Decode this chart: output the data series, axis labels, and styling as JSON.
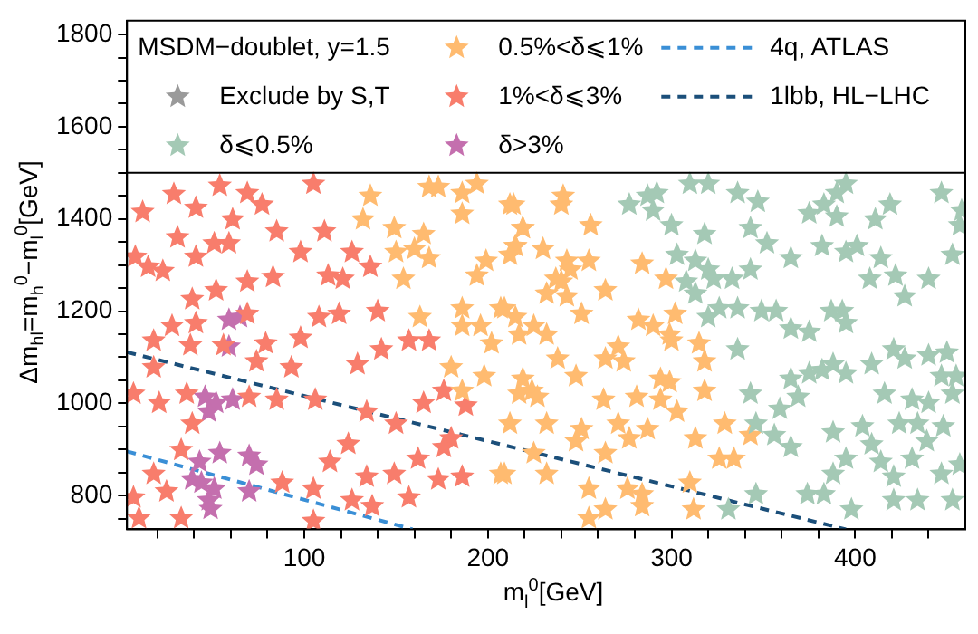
{
  "chart_data": {
    "type": "scatter",
    "legend_title": "MSDM−doublet, y=1.5",
    "xlabel": "m$_{l}$$^{0}$[GeV]",
    "ylabel": "Δm$_{hl}$=m$_{h}$$^{0}$−m$_{l}$$^{0}$[GeV]",
    "xlim": [
      3.5,
      460
    ],
    "ylim": [
      727,
      1830
    ],
    "xticks": [
      {
        "value": 20,
        "label": null
      },
      {
        "value": 40,
        "label": null
      },
      {
        "value": 60,
        "label": null
      },
      {
        "value": 80,
        "label": null
      },
      100,
      {
        "value": 120,
        "label": null
      },
      {
        "value": 140,
        "label": null
      },
      {
        "value": 160,
        "label": null
      },
      {
        "value": 180,
        "label": null
      },
      200,
      {
        "value": 220,
        "label": null
      },
      {
        "value": 240,
        "label": null
      },
      {
        "value": 260,
        "label": null
      },
      {
        "value": 280,
        "label": null
      },
      300,
      {
        "value": 320,
        "label": null
      },
      {
        "value": 340,
        "label": null
      },
      {
        "value": 360,
        "label": null
      },
      {
        "value": 380,
        "label": null
      },
      400,
      {
        "value": 420,
        "label": null
      },
      {
        "value": 440,
        "label": null
      }
    ],
    "yticks": [
      {
        "value": 750,
        "label": null
      },
      800,
      {
        "value": 850,
        "label": null
      },
      {
        "value": 900,
        "label": null
      },
      {
        "value": 950,
        "label": null
      },
      1000,
      {
        "value": 1050,
        "label": null
      },
      {
        "value": 1100,
        "label": null
      },
      {
        "value": 1150,
        "label": null
      },
      1200,
      {
        "value": 1250,
        "label": null
      },
      {
        "value": 1300,
        "label": null
      },
      {
        "value": 1350,
        "label": null
      },
      1400,
      {
        "value": 1450,
        "label": null
      },
      {
        "value": 1500,
        "label": null
      },
      {
        "value": 1550,
        "label": null
      },
      1600,
      {
        "value": 1650,
        "label": null
      },
      {
        "value": 1700,
        "label": null
      },
      {
        "value": 1750,
        "label": null
      },
      1800
    ],
    "grid": false,
    "legend": "top",
    "marker": "star",
    "ref_lines": [
      {
        "axis": "y",
        "value": 1500,
        "color": "#000000"
      }
    ],
    "series": [
      {
        "name": "Exclude by S,T",
        "color": "#9a9a9a"
      },
      {
        "name": "δ⩽0.5%",
        "color": "#a4c9b5",
        "x": [
          277,
          287,
          290,
          292,
          310,
          320,
          336,
          347,
          343,
          352,
          375,
          383,
          390,
          395,
          390,
          411,
          419,
          447,
          458,
          457,
          300,
          318,
          303,
          313,
          320,
          308,
          323,
          333,
          343,
          365,
          382,
          395,
          401,
          408,
          414,
          422,
          427,
          440,
          453,
          313,
          326,
          336,
          357,
          387,
          393,
          320,
          365,
          375,
          395,
          421,
          427,
          440,
          450,
          336,
          349,
          382,
          388,
          395,
          409,
          447,
          455,
          365,
          375,
          369,
          343,
          416,
          431,
          440,
          453,
          359,
          356,
          365,
          346,
          388,
          404,
          424,
          434,
          448,
          409,
          439,
          457,
          395,
          414,
          431,
          447,
          388,
          374,
          383,
          398,
          346,
          331,
          421,
          434,
          453,
          421
        ],
        "values": [
          1431,
          1450,
          1418,
          1456,
          1476,
          1476,
          1456,
          1437,
          1380,
          1347,
          1412,
          1431,
          1456,
          1476,
          1405,
          1399,
          1431,
          1456,
          1418,
          1386,
          1386,
          1367,
          1322,
          1309,
          1290,
          1264,
          1270,
          1270,
          1290,
          1315,
          1341,
          1328,
          1341,
          1270,
          1315,
          1277,
          1232,
          1270,
          1322,
          1238,
          1206,
          1206,
          1200,
          1200,
          1200,
          1187,
          1162,
          1155,
          1174,
          1117,
          1097,
          1104,
          1110,
          1117,
          1200,
          1072,
          1085,
          1065,
          1085,
          1059,
          1059,
          1053,
          1065,
          1014,
          1021,
          1021,
          1008,
          1001,
          1021,
          988,
          931,
          905,
          956,
          937,
          950,
          956,
          956,
          950,
          911,
          918,
          867,
          880,
          873,
          880,
          847,
          847,
          803,
          803,
          770,
          803,
          770,
          790,
          790,
          790,
          841
        ]
      },
      {
        "name": "0.5%<δ⩽1%",
        "color": "#ffbb70",
        "x": [
          136,
          132,
          149,
          165,
          168,
          173,
          186,
          186,
          194,
          214,
          219,
          215,
          150,
          160,
          168,
          154,
          199,
          194,
          163,
          186,
          207,
          186,
          196,
          202,
          215,
          180,
          198,
          186,
          217,
          207,
          224,
          212,
          240,
          241,
          219,
          256,
          215,
          212,
          230,
          243,
          255,
          245,
          237,
          240,
          284,
          297,
          264,
          232,
          243,
          251,
          209,
          225,
          232,
          217,
          282,
          290,
          302,
          300,
          299,
          271,
          315,
          318,
          238,
          264,
          274,
          294,
          299,
          219,
          227,
          248,
          263,
          281,
          318,
          294,
          303,
          212,
          232,
          251,
          271,
          287,
          313,
          329,
          343,
          225,
          248,
          264,
          277,
          326,
          334,
          232,
          255,
          276,
          284,
          310,
          312,
          255,
          264,
          284,
          209
        ],
        "values": [
          1450,
          1399,
          1380,
          1367,
          1469,
          1469,
          1456,
          1411,
          1476,
          1431,
          1380,
          1341,
          1328,
          1335,
          1315,
          1270,
          1309,
          1277,
          1187,
          1206,
          1206,
          1168,
          1168,
          1130,
          1187,
          1078,
          1059,
          1027,
          1021,
          847,
          1027,
          1431,
          1431,
          1450,
          1380,
          1386,
          1341,
          1322,
          1335,
          1309,
          1309,
          1290,
          1270,
          1264,
          1303,
          1270,
          1245,
          1238,
          1232,
          1194,
          1206,
          1168,
          1149,
          1149,
          1181,
          1168,
          1194,
          1136,
          1149,
          1123,
          1130,
          1091,
          1097,
          1097,
          1091,
          1053,
          1046,
          1053,
          1014,
          1059,
          1008,
          1014,
          1027,
          1008,
          982,
          956,
          956,
          944,
          956,
          944,
          924,
          956,
          931,
          892,
          918,
          892,
          924,
          880,
          880,
          847,
          815,
          815,
          803,
          828,
          770,
          751,
          770,
          777,
          847
        ]
      },
      {
        "name": "1%<δ⩽3%",
        "color": "#f87d6c",
        "x": [
          54,
          29,
          69,
          77,
          41,
          12,
          105,
          111,
          85,
          61,
          31,
          8,
          15,
          23,
          51,
          59,
          41,
          98,
          83,
          113,
          121,
          136,
          126,
          69,
          52,
          39,
          69,
          28,
          41,
          18,
          38,
          56,
          79,
          98,
          108,
          119,
          140,
          157,
          168,
          74,
          93,
          129,
          142,
          18,
          7,
          21,
          39,
          36,
          70,
          85,
          106,
          134,
          150,
          165,
          176,
          188,
          180,
          162,
          149,
          157,
          173,
          186,
          137,
          126,
          114,
          105,
          88,
          124,
          33,
          18,
          7,
          25,
          176,
          134,
          10,
          105,
          33
        ],
        "values": [
          1472,
          1454,
          1456,
          1431,
          1424,
          1415,
          1476,
          1373,
          1373,
          1399,
          1360,
          1318,
          1296,
          1287,
          1347,
          1347,
          1318,
          1328,
          1274,
          1277,
          1270,
          1296,
          1328,
          1264,
          1245,
          1226,
          1194,
          1168,
          1174,
          1136,
          1126,
          1126,
          1130,
          1142,
          1187,
          1194,
          1200,
          1136,
          1136,
          1091,
          1078,
          1085,
          1117,
          1078,
          1021,
          1001,
          956,
          1021,
          1014,
          1008,
          1008,
          982,
          956,
          1001,
          1027,
          995,
          924,
          880,
          847,
          796,
          835,
          841,
          777,
          790,
          873,
          815,
          828,
          912,
          899,
          847,
          796,
          809,
          905,
          841,
          751,
          745,
          751
        ]
      },
      {
        "name": "δ>3%",
        "color": "#c46fae",
        "x": [
          59,
          59,
          65,
          46,
          49,
          52,
          61,
          48,
          43,
          54,
          70,
          74,
          39,
          44,
          51,
          48,
          70,
          49
        ],
        "values": [
          1181,
          1123,
          1187,
          1014,
          null,
          1001,
          1008,
          982,
          873,
          892,
          886,
          867,
          835,
          828,
          815,
          790,
          809,
          771
        ]
      },
      {
        "name": "4q, ATLAS",
        "type": "line",
        "line_style": "dashed",
        "marker": "none",
        "color": "#3a8fd6",
        "x": [
          3.5,
          159
        ],
        "values": [
          896,
          727
        ]
      },
      {
        "name": "1lbb, HL−LHC",
        "type": "line",
        "line_style": "dashed",
        "marker": "none",
        "color": "#1b4f7a",
        "x": [
          3.5,
          395
        ],
        "values": [
          1111,
          727
        ]
      }
    ]
  }
}
